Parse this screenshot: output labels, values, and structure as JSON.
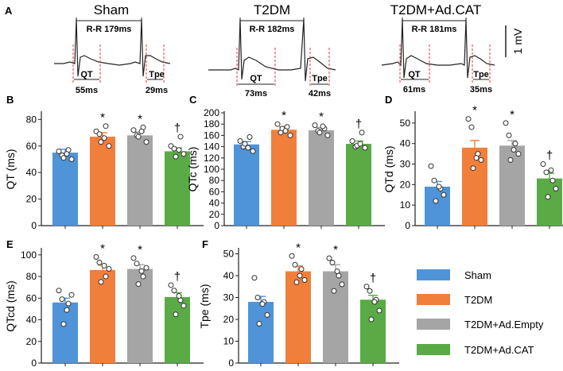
{
  "figure": {
    "panel_a": {
      "letter": "A",
      "scale_label": "1 mV",
      "groups": [
        {
          "title": "Sham",
          "rr": "R-R 179ms",
          "qt_label": "QT",
          "qt_value": "55ms",
          "tpe_label": "Tpe",
          "tpe_value": "29ms"
        },
        {
          "title": "T2DM",
          "rr": "R-R 182ms",
          "qt_label": "QT",
          "qt_value": "73ms",
          "tpe_label": "Tpe",
          "tpe_value": "42ms"
        },
        {
          "title": "T2DM+Ad.CAT",
          "rr": "R-R 181ms",
          "qt_label": "QT",
          "qt_value": "61ms",
          "tpe_label": "Tpe",
          "tpe_value": "35ms"
        }
      ]
    },
    "legend": {
      "items": [
        {
          "label": "Sham",
          "color": "#4f93d8"
        },
        {
          "label": "T2DM",
          "color": "#f07f3c"
        },
        {
          "label": "T2DM+Ad.Empty",
          "color": "#a5a5a5"
        },
        {
          "label": "T2DM+Ad.CAT",
          "color": "#5aaa46"
        }
      ]
    }
  },
  "chart_data": [
    {
      "panel": "B",
      "type": "bar",
      "ylabel": "QT (ms)",
      "ylim": [
        0,
        85
      ],
      "yticks": [
        0,
        20,
        40,
        60,
        80
      ],
      "categories": [
        "Sham",
        "T2DM",
        "T2DM+Ad.Empty",
        "T2DM+Ad.CAT"
      ],
      "values": [
        55,
        67,
        68,
        56
      ],
      "errors": [
        2.5,
        3,
        2.5,
        2.5
      ],
      "markers": [
        "",
        "*",
        "*",
        "†"
      ],
      "points": [
        [
          56,
          53,
          57,
          50,
          51,
          54
        ],
        [
          71,
          69,
          75,
          60,
          63,
          66
        ],
        [
          72,
          68,
          74,
          63,
          67,
          71
        ],
        [
          60,
          58,
          67,
          54,
          52,
          57
        ]
      ]
    },
    {
      "panel": "C",
      "type": "bar",
      "ylabel": "QTc (ms)",
      "ylim": [
        0,
        200
      ],
      "yticks": [
        0,
        20,
        40,
        60,
        80,
        100,
        120,
        140,
        160,
        180,
        200
      ],
      "categories": [
        "Sham",
        "T2DM",
        "T2DM+Ad.Empty",
        "T2DM+Ad.CAT"
      ],
      "values": [
        144,
        170,
        169,
        145
      ],
      "errors": [
        5,
        5,
        5,
        5
      ],
      "markers": [
        "",
        "*",
        "*",
        "†"
      ],
      "points": [
        [
          150,
          140,
          157,
          132,
          145,
          138
        ],
        [
          180,
          165,
          175,
          160,
          172,
          168
        ],
        [
          178,
          168,
          172,
          160,
          165,
          176
        ],
        [
          150,
          140,
          165,
          138,
          142,
          145
        ]
      ]
    },
    {
      "panel": "D",
      "type": "bar",
      "ylabel": "QTd (ms)",
      "ylim": [
        0,
        55
      ],
      "yticks": [
        0,
        10,
        20,
        30,
        40,
        50
      ],
      "categories": [
        "Sham",
        "T2DM",
        "T2DM+Ad.Empty",
        "T2DM+Ad.CAT"
      ],
      "values": [
        19,
        38,
        39,
        23
      ],
      "errors": [
        2.5,
        3.5,
        2.5,
        2.5
      ],
      "markers": [
        "",
        "*",
        "*",
        "†"
      ],
      "points": [
        [
          29,
          22,
          18,
          15,
          12,
          19
        ],
        [
          52,
          48,
          35,
          32,
          28,
          33
        ],
        [
          50,
          44,
          40,
          35,
          32,
          37
        ],
        [
          30,
          26,
          22,
          18,
          14,
          27
        ]
      ]
    },
    {
      "panel": "E",
      "type": "bar",
      "ylabel": "QTcd (ms)",
      "ylim": [
        0,
        105
      ],
      "yticks": [
        0,
        20,
        40,
        60,
        80,
        100
      ],
      "categories": [
        "Sham",
        "T2DM",
        "T2DM+Ad.Empty",
        "T2DM+Ad.CAT"
      ],
      "values": [
        56,
        86,
        87,
        61
      ],
      "errors": [
        4,
        4.5,
        4,
        4
      ],
      "markers": [
        "",
        "*",
        "*",
        "†"
      ],
      "points": [
        [
          67,
          59,
          55,
          63,
          36,
          49
        ],
        [
          98,
          93,
          80,
          87,
          75,
          90
        ],
        [
          97,
          92,
          80,
          88,
          73,
          85
        ],
        [
          72,
          67,
          58,
          53,
          45,
          62
        ]
      ]
    },
    {
      "panel": "F",
      "type": "bar",
      "ylabel": "Tpe (ms)",
      "ylim": [
        0,
        52
      ],
      "yticks": [
        0,
        10,
        20,
        30,
        40,
        50
      ],
      "categories": [
        "Sham",
        "T2DM",
        "T2DM+Ad.Empty",
        "T2DM+Ad.CAT"
      ],
      "values": [
        28,
        42,
        42,
        29
      ],
      "errors": [
        2.5,
        2.5,
        3,
        2
      ],
      "markers": [
        "",
        "*",
        "*",
        "†"
      ],
      "points": [
        [
          39,
          30,
          28,
          22,
          18,
          27
        ],
        [
          49,
          45,
          43,
          38,
          37,
          40
        ],
        [
          48,
          46,
          40,
          36,
          33,
          42
        ],
        [
          35,
          33,
          29,
          24,
          20,
          28
        ]
      ]
    }
  ]
}
